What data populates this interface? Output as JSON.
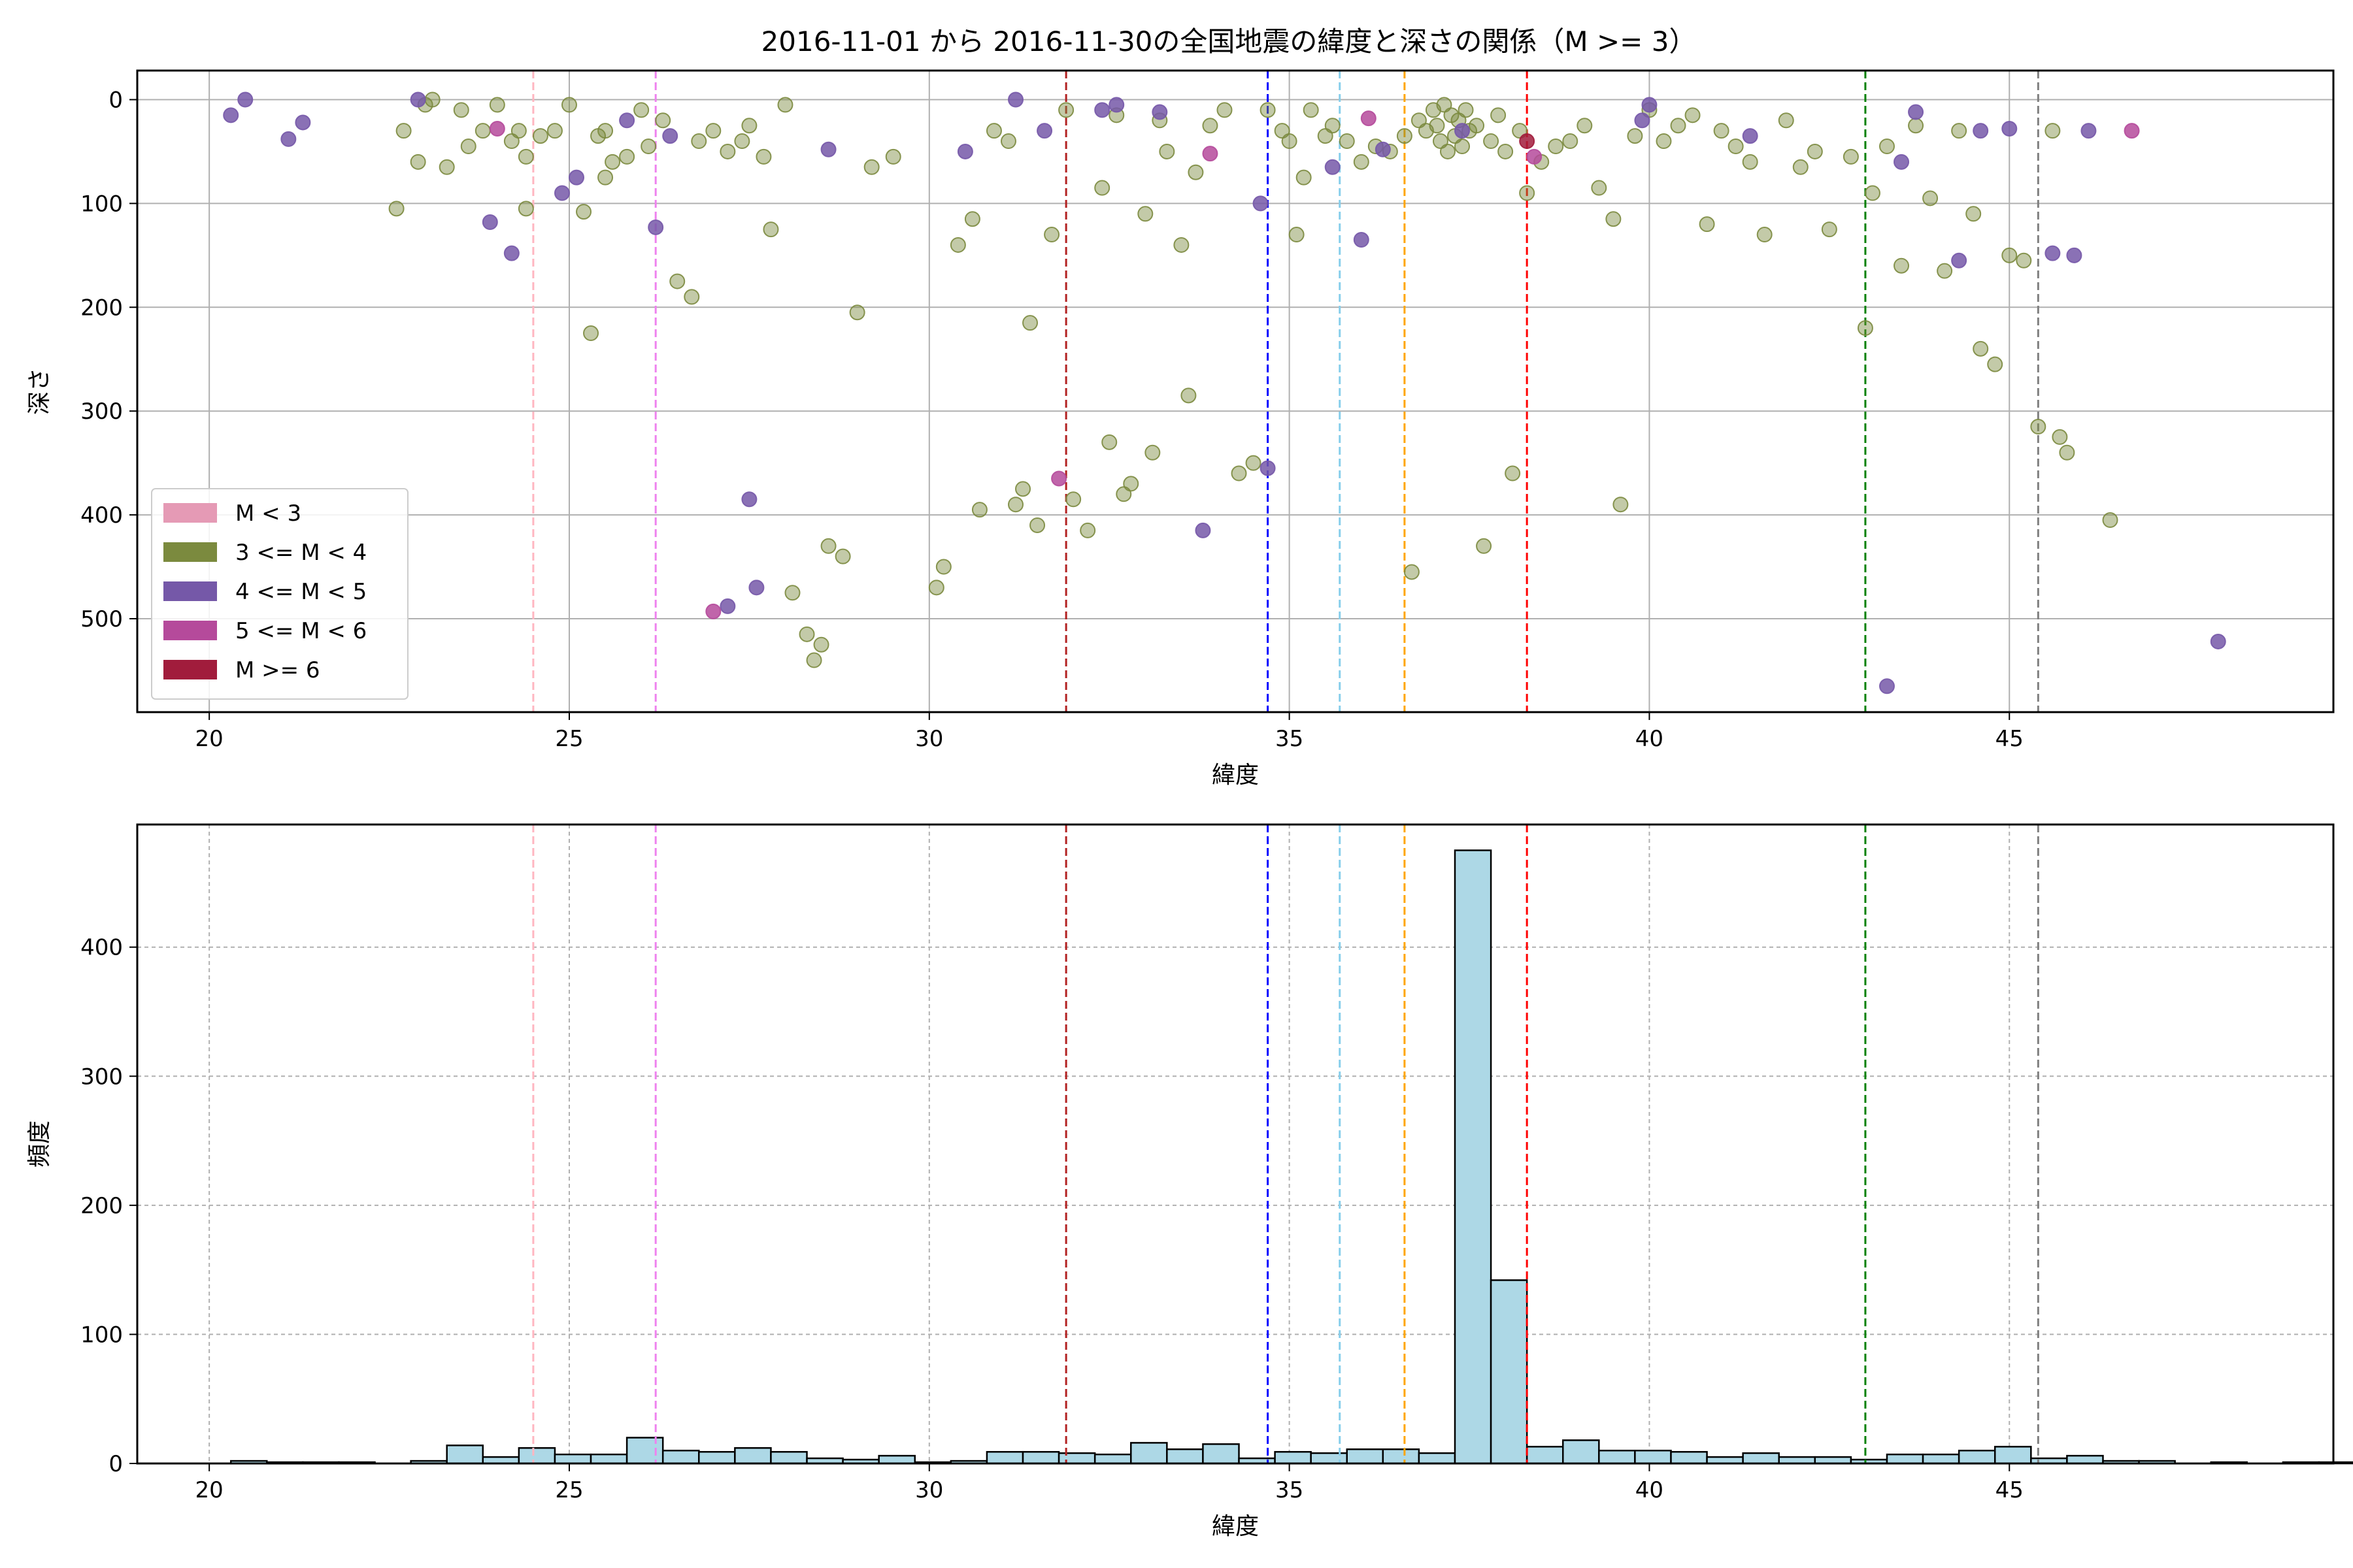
{
  "title": "2016-11-01 から 2016-11-30の全国地震の緯度と深さの関係（M >= 3）",
  "colors": {
    "m_lt3": "#e59ab5",
    "m3_4": "#7b8a3e",
    "m4_5": "#7558a8",
    "m5_6": "#b54a9b",
    "m_ge6": "#a11c3c",
    "hist_fill": "#add8e6",
    "hist_edge": "#000000"
  },
  "chart_data": [
    {
      "type": "scatter",
      "xlabel": "緯度",
      "ylabel": "深さ",
      "xlim": [
        19,
        49.5
      ],
      "ylim": [
        590,
        -28
      ],
      "y_inverted": true,
      "x_ticks": [
        20,
        25,
        30,
        35,
        40,
        45
      ],
      "y_ticks": [
        0,
        100,
        200,
        300,
        400,
        500
      ],
      "grid": true,
      "legend_position": "lower-left",
      "legend": [
        {
          "label": "M < 3",
          "color_key": "m_lt3"
        },
        {
          "label": "3 <= M < 4",
          "color_key": "m3_4"
        },
        {
          "label": "4 <= M < 5",
          "color_key": "m4_5"
        },
        {
          "label": "5 <= M < 6",
          "color_key": "m5_6"
        },
        {
          "label": "M >= 6",
          "color_key": "m_ge6"
        }
      ],
      "vlines": [
        {
          "x": 24.5,
          "color": "#ffb6c1"
        },
        {
          "x": 26.2,
          "color": "#ee82ee"
        },
        {
          "x": 31.9,
          "color": "#b22222"
        },
        {
          "x": 34.7,
          "color": "#0000ff"
        },
        {
          "x": 35.7,
          "color": "#87ceeb"
        },
        {
          "x": 36.6,
          "color": "#ffa500"
        },
        {
          "x": 38.3,
          "color": "#ff0000"
        },
        {
          "x": 43.0,
          "color": "#008000"
        },
        {
          "x": 45.4,
          "color": "#808080"
        }
      ],
      "series": [
        {
          "name": "3 <= M < 4",
          "color_key": "m3_4",
          "points": [
            [
              22.6,
              105
            ],
            [
              22.7,
              30
            ],
            [
              22.9,
              60
            ],
            [
              23.0,
              5
            ],
            [
              23.1,
              0
            ],
            [
              23.3,
              65
            ],
            [
              23.5,
              10
            ],
            [
              23.6,
              45
            ],
            [
              23.8,
              30
            ],
            [
              24.0,
              5
            ],
            [
              24.2,
              40
            ],
            [
              24.3,
              30
            ],
            [
              24.4,
              105
            ],
            [
              24.4,
              55
            ],
            [
              24.6,
              35
            ],
            [
              24.8,
              30
            ],
            [
              25.0,
              5
            ],
            [
              25.2,
              108
            ],
            [
              25.3,
              225
            ],
            [
              25.4,
              35
            ],
            [
              25.5,
              30
            ],
            [
              25.5,
              75
            ],
            [
              25.6,
              60
            ],
            [
              25.8,
              55
            ],
            [
              26.0,
              10
            ],
            [
              26.1,
              45
            ],
            [
              26.3,
              20
            ],
            [
              26.5,
              175
            ],
            [
              26.7,
              190
            ],
            [
              26.8,
              40
            ],
            [
              27.0,
              30
            ],
            [
              27.2,
              50
            ],
            [
              27.4,
              40
            ],
            [
              27.5,
              25
            ],
            [
              27.7,
              55
            ],
            [
              27.8,
              125
            ],
            [
              28.0,
              5
            ],
            [
              28.1,
              475
            ],
            [
              28.3,
              515
            ],
            [
              28.4,
              540
            ],
            [
              28.5,
              525
            ],
            [
              28.6,
              430
            ],
            [
              28.8,
              440
            ],
            [
              29.0,
              205
            ],
            [
              29.2,
              65
            ],
            [
              29.5,
              55
            ],
            [
              30.1,
              470
            ],
            [
              30.2,
              450
            ],
            [
              30.4,
              140
            ],
            [
              30.6,
              115
            ],
            [
              30.7,
              395
            ],
            [
              30.9,
              30
            ],
            [
              31.1,
              40
            ],
            [
              31.2,
              390
            ],
            [
              31.3,
              375
            ],
            [
              31.4,
              215
            ],
            [
              31.5,
              410
            ],
            [
              31.7,
              130
            ],
            [
              31.9,
              10
            ],
            [
              32.0,
              385
            ],
            [
              32.2,
              415
            ],
            [
              32.4,
              85
            ],
            [
              32.5,
              330
            ],
            [
              32.6,
              15
            ],
            [
              32.7,
              380
            ],
            [
              32.8,
              370
            ],
            [
              33.0,
              110
            ],
            [
              33.1,
              340
            ],
            [
              33.2,
              20
            ],
            [
              33.3,
              50
            ],
            [
              33.5,
              140
            ],
            [
              33.6,
              285
            ],
            [
              33.7,
              70
            ],
            [
              33.9,
              25
            ],
            [
              34.1,
              10
            ],
            [
              34.3,
              360
            ],
            [
              34.5,
              350
            ],
            [
              34.7,
              10
            ],
            [
              34.9,
              30
            ],
            [
              35.0,
              40
            ],
            [
              35.1,
              130
            ],
            [
              35.2,
              75
            ],
            [
              35.3,
              10
            ],
            [
              35.5,
              35
            ],
            [
              35.6,
              25
            ],
            [
              35.8,
              40
            ],
            [
              36.0,
              60
            ],
            [
              36.2,
              45
            ],
            [
              36.4,
              50
            ],
            [
              36.6,
              35
            ],
            [
              36.7,
              455
            ],
            [
              36.8,
              20
            ],
            [
              36.9,
              30
            ],
            [
              37.0,
              10
            ],
            [
              37.05,
              25
            ],
            [
              37.1,
              40
            ],
            [
              37.15,
              5
            ],
            [
              37.2,
              50
            ],
            [
              37.25,
              15
            ],
            [
              37.3,
              35
            ],
            [
              37.35,
              20
            ],
            [
              37.4,
              45
            ],
            [
              37.45,
              10
            ],
            [
              37.5,
              30
            ],
            [
              37.6,
              25
            ],
            [
              37.7,
              430
            ],
            [
              37.8,
              40
            ],
            [
              37.9,
              15
            ],
            [
              38.0,
              50
            ],
            [
              38.1,
              360
            ],
            [
              38.2,
              30
            ],
            [
              38.3,
              90
            ],
            [
              38.5,
              60
            ],
            [
              38.7,
              45
            ],
            [
              38.9,
              40
            ],
            [
              39.1,
              25
            ],
            [
              39.3,
              85
            ],
            [
              39.5,
              115
            ],
            [
              39.6,
              390
            ],
            [
              39.8,
              35
            ],
            [
              40.0,
              10
            ],
            [
              40.2,
              40
            ],
            [
              40.4,
              25
            ],
            [
              40.6,
              15
            ],
            [
              40.8,
              120
            ],
            [
              41.0,
              30
            ],
            [
              41.2,
              45
            ],
            [
              41.4,
              60
            ],
            [
              41.6,
              130
            ],
            [
              41.9,
              20
            ],
            [
              42.1,
              65
            ],
            [
              42.3,
              50
            ],
            [
              42.5,
              125
            ],
            [
              42.8,
              55
            ],
            [
              43.0,
              220
            ],
            [
              43.1,
              90
            ],
            [
              43.3,
              45
            ],
            [
              43.5,
              160
            ],
            [
              43.7,
              25
            ],
            [
              43.9,
              95
            ],
            [
              44.1,
              165
            ],
            [
              44.3,
              30
            ],
            [
              44.5,
              110
            ],
            [
              44.6,
              240
            ],
            [
              44.8,
              255
            ],
            [
              45.0,
              150
            ],
            [
              45.2,
              155
            ],
            [
              45.4,
              315
            ],
            [
              45.6,
              30
            ],
            [
              45.7,
              325
            ],
            [
              45.8,
              340
            ],
            [
              46.4,
              405
            ]
          ]
        },
        {
          "name": "4 <= M < 5",
          "color_key": "m4_5",
          "points": [
            [
              20.3,
              15
            ],
            [
              20.5,
              0
            ],
            [
              21.1,
              38
            ],
            [
              21.3,
              22
            ],
            [
              22.9,
              0
            ],
            [
              23.9,
              118
            ],
            [
              24.2,
              148
            ],
            [
              24.9,
              90
            ],
            [
              25.1,
              75
            ],
            [
              25.8,
              20
            ],
            [
              26.2,
              123
            ],
            [
              26.4,
              35
            ],
            [
              27.2,
              488
            ],
            [
              27.5,
              385
            ],
            [
              27.6,
              470
            ],
            [
              28.6,
              48
            ],
            [
              30.5,
              50
            ],
            [
              31.2,
              0
            ],
            [
              31.6,
              30
            ],
            [
              32.4,
              10
            ],
            [
              32.6,
              5
            ],
            [
              33.2,
              12
            ],
            [
              33.8,
              415
            ],
            [
              34.6,
              100
            ],
            [
              34.7,
              355
            ],
            [
              35.6,
              65
            ],
            [
              36.0,
              135
            ],
            [
              36.3,
              48
            ],
            [
              37.4,
              30
            ],
            [
              39.9,
              20
            ],
            [
              40.0,
              5
            ],
            [
              41.4,
              35
            ],
            [
              43.3,
              565
            ],
            [
              43.5,
              60
            ],
            [
              43.7,
              12
            ],
            [
              44.3,
              155
            ],
            [
              44.6,
              30
            ],
            [
              45.0,
              28
            ],
            [
              45.6,
              148
            ],
            [
              45.9,
              150
            ],
            [
              46.1,
              30
            ],
            [
              47.9,
              522
            ]
          ]
        },
        {
          "name": "5 <= M < 6",
          "color_key": "m5_6",
          "points": [
            [
              24.0,
              28
            ],
            [
              27.0,
              493
            ],
            [
              31.8,
              365
            ],
            [
              33.9,
              52
            ],
            [
              36.1,
              18
            ],
            [
              38.4,
              55
            ],
            [
              46.7,
              30
            ]
          ]
        },
        {
          "name": "M >= 6",
          "color_key": "m_ge6",
          "points": [
            [
              38.3,
              40
            ]
          ]
        }
      ]
    },
    {
      "type": "histogram",
      "xlabel": "緯度",
      "ylabel": "頻度",
      "xlim": [
        19,
        49.5
      ],
      "ylim": [
        0,
        495
      ],
      "x_ticks": [
        20,
        25,
        30,
        35,
        40,
        45
      ],
      "y_ticks": [
        0,
        100,
        200,
        300,
        400
      ],
      "grid": true,
      "bin_start": 20.3,
      "bin_width": 0.5,
      "counts": [
        2,
        1,
        1,
        1,
        0,
        2,
        14,
        5,
        12,
        7,
        7,
        20,
        10,
        9,
        12,
        9,
        4,
        3,
        6,
        1,
        2,
        9,
        9,
        8,
        7,
        16,
        11,
        15,
        4,
        9,
        8,
        11,
        11,
        8,
        475,
        142,
        13,
        18,
        10,
        10,
        9,
        5,
        8,
        5,
        5,
        3,
        7,
        7,
        10,
        13,
        4,
        6,
        2,
        2,
        0,
        1,
        0,
        1,
        1
      ],
      "vlines": [
        {
          "x": 24.5,
          "color": "#ffb6c1"
        },
        {
          "x": 26.2,
          "color": "#ee82ee"
        },
        {
          "x": 31.9,
          "color": "#b22222"
        },
        {
          "x": 34.7,
          "color": "#0000ff"
        },
        {
          "x": 35.7,
          "color": "#87ceeb"
        },
        {
          "x": 36.6,
          "color": "#ffa500"
        },
        {
          "x": 38.3,
          "color": "#ff0000"
        },
        {
          "x": 43.0,
          "color": "#008000"
        },
        {
          "x": 45.4,
          "color": "#808080"
        }
      ]
    }
  ]
}
